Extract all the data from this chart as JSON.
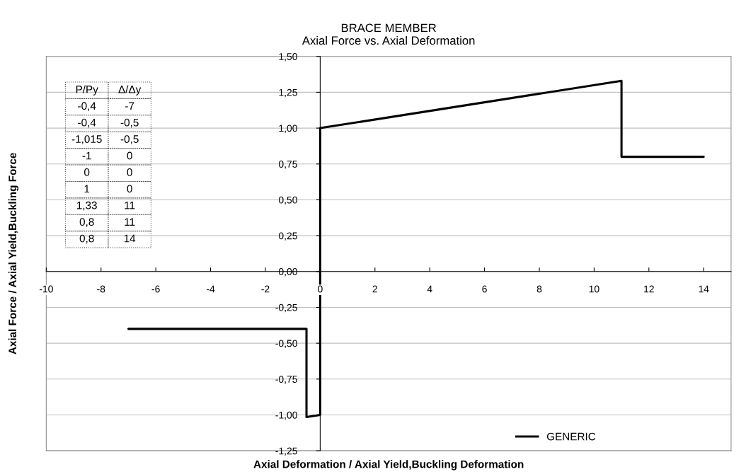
{
  "chart_data": {
    "type": "line",
    "title": "BRACE MEMBER",
    "subtitle": "Axial Force vs. Axial Deformation",
    "xlabel": "Axial Deformation / Axial Yield,Buckling Deformation",
    "ylabel": "Axial Force / Axial Yield,Buckling Force",
    "x": [
      -7,
      -0.5,
      -0.5,
      0,
      0,
      0,
      11,
      11,
      14
    ],
    "series": [
      {
        "name": "GENERIC",
        "color": "#000000",
        "values": [
          -0.4,
          -0.4,
          -1.015,
          -1,
          0,
          1,
          1.33,
          0.8,
          0.8
        ]
      }
    ],
    "xlim": [
      -10,
      15
    ],
    "xticks": [
      -10,
      -8,
      -6,
      -4,
      -2,
      0,
      2,
      4,
      6,
      8,
      10,
      12,
      14
    ],
    "ylim": [
      -1.25,
      1.5
    ],
    "yticks": [
      {
        "value": -1.25,
        "label": "-1,25"
      },
      {
        "value": -1,
        "label": "-1,00"
      },
      {
        "value": -0.75,
        "label": "-0,75"
      },
      {
        "value": -0.5,
        "label": "-0,50"
      },
      {
        "value": -0.25,
        "label": "-0,25"
      },
      {
        "value": 0,
        "label": "0,00"
      },
      {
        "value": 0.25,
        "label": "0,25"
      },
      {
        "value": 0.5,
        "label": "0,50"
      },
      {
        "value": 0.75,
        "label": "0,75"
      },
      {
        "value": 1,
        "label": "1,00"
      },
      {
        "value": 1.25,
        "label": "1,25"
      },
      {
        "value": 1.5,
        "label": "1,50"
      }
    ],
    "grid": "y",
    "legend": "bottom right",
    "marker": "none",
    "line_style": "solid",
    "annotations": [
      "P/Py",
      "Δ/Δy",
      "-0,4",
      "-7",
      "-0,4",
      "-0,5",
      "-1,015",
      "-0,5",
      "-1",
      "0",
      "0",
      "0",
      "1",
      "0",
      "1,33",
      "11",
      "0,8",
      "11",
      "0,8",
      "14"
    ]
  }
}
